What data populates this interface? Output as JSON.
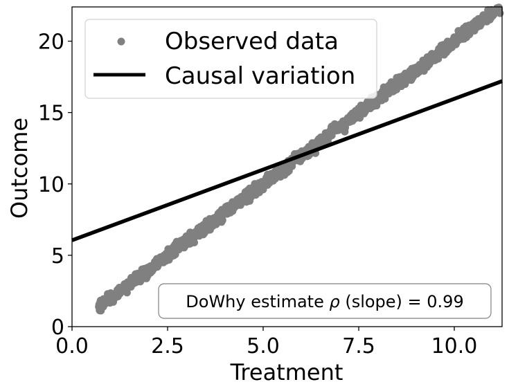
{
  "chart_data": {
    "type": "scatter",
    "xlabel": "Treatment",
    "ylabel": "Outcome",
    "xlim": [
      0.0,
      11.25
    ],
    "ylim": [
      0,
      22.4
    ],
    "xticks": [
      "0.0",
      "2.5",
      "5.0",
      "7.5",
      "10.0"
    ],
    "yticks": [
      "0",
      "5",
      "10",
      "15",
      "20"
    ],
    "grid": false,
    "legend_position": "upper-left",
    "series": [
      {
        "name": "Observed data",
        "kind": "scatter",
        "color": "#808080",
        "x_range": [
          0.7,
          11.2
        ],
        "trend": {
          "slope": 2.0,
          "intercept": 0.0
        },
        "spread": 0.45
      },
      {
        "name": "Causal variation",
        "kind": "line",
        "color": "#000000",
        "x": [
          0.0,
          11.25
        ],
        "y": [
          6.05,
          17.2
        ]
      }
    ],
    "annotation": {
      "text_prefix": "DoWhy estimate ",
      "symbol": "ρ",
      "text_suffix": " (slope) = 0.99",
      "position": "lower-right"
    }
  }
}
